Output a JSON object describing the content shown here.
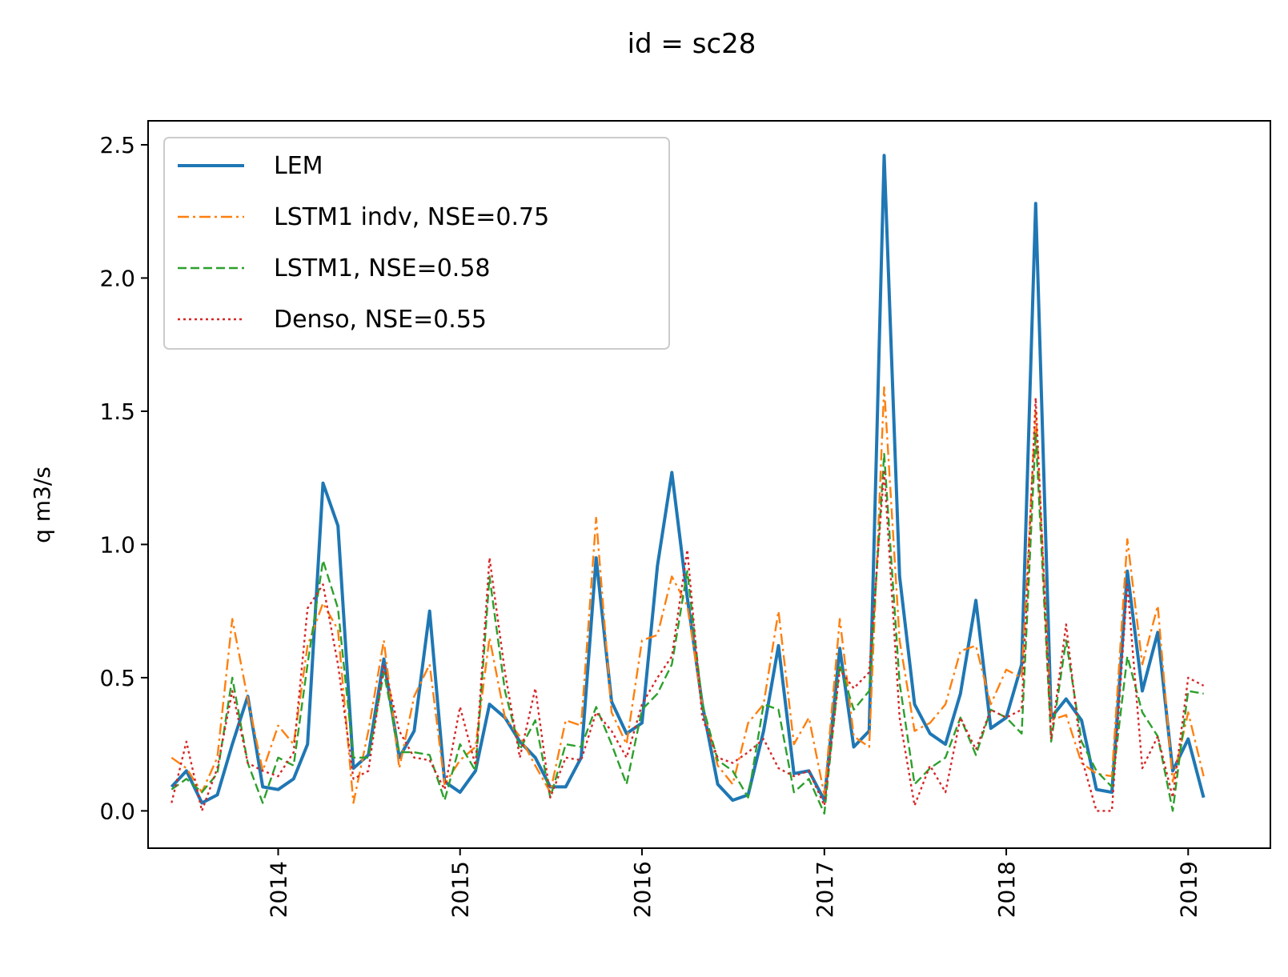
{
  "chart_data": {
    "type": "line",
    "title": "id = sc28",
    "xlabel": "",
    "ylabel": "q m3/s",
    "x_tick_labels": [
      "2014",
      "2015",
      "2016",
      "2017",
      "2018",
      "2019"
    ],
    "y_tick_labels": [
      "0.0",
      "0.5",
      "1.0",
      "1.5",
      "2.0",
      "2.5"
    ],
    "xlim": [
      "2013-04-15",
      "2019-06-15"
    ],
    "ylim": [
      -0.14,
      2.59
    ],
    "grid": false,
    "legend_position": "top-left",
    "x": [
      "2013-06-01",
      "2013-07-01",
      "2013-08-01",
      "2013-09-01",
      "2013-10-01",
      "2013-11-01",
      "2013-12-01",
      "2014-01-01",
      "2014-02-01",
      "2014-03-01",
      "2014-04-01",
      "2014-05-01",
      "2014-06-01",
      "2014-07-01",
      "2014-08-01",
      "2014-09-01",
      "2014-10-01",
      "2014-11-01",
      "2014-12-01",
      "2015-01-01",
      "2015-02-01",
      "2015-03-01",
      "2015-04-01",
      "2015-05-01",
      "2015-06-01",
      "2015-07-01",
      "2015-08-01",
      "2015-09-01",
      "2015-10-01",
      "2015-11-01",
      "2015-12-01",
      "2016-01-01",
      "2016-02-01",
      "2016-03-01",
      "2016-04-01",
      "2016-05-01",
      "2016-06-01",
      "2016-07-01",
      "2016-08-01",
      "2016-09-01",
      "2016-10-01",
      "2016-11-01",
      "2016-12-01",
      "2017-01-01",
      "2017-02-01",
      "2017-03-01",
      "2017-04-01",
      "2017-05-01",
      "2017-06-01",
      "2017-07-01",
      "2017-08-01",
      "2017-09-01",
      "2017-10-01",
      "2017-11-01",
      "2017-12-01",
      "2018-01-01",
      "2018-02-01",
      "2018-03-01",
      "2018-04-01",
      "2018-05-01",
      "2018-06-01",
      "2018-07-01",
      "2018-08-01",
      "2018-09-01",
      "2018-10-01",
      "2018-11-01",
      "2018-12-01",
      "2019-01-01",
      "2019-02-01"
    ],
    "series": [
      {
        "name": "LEM",
        "color": "#1f77b4",
        "style": "solid",
        "values": [
          0.09,
          0.15,
          0.03,
          0.06,
          0.25,
          0.43,
          0.09,
          0.08,
          0.12,
          0.25,
          1.23,
          1.07,
          0.16,
          0.21,
          0.57,
          0.2,
          0.3,
          0.75,
          0.11,
          0.07,
          0.15,
          0.4,
          0.35,
          0.26,
          0.2,
          0.09,
          0.09,
          0.2,
          0.95,
          0.41,
          0.29,
          0.33,
          0.92,
          1.27,
          0.8,
          0.4,
          0.1,
          0.04,
          0.06,
          0.3,
          0.62,
          0.14,
          0.15,
          0.04,
          0.61,
          0.24,
          0.3,
          2.46,
          0.88,
          0.4,
          0.29,
          0.25,
          0.44,
          0.79,
          0.31,
          0.35,
          0.55,
          2.28,
          0.35,
          0.42,
          0.34,
          0.08,
          0.07,
          0.9,
          0.45,
          0.67,
          0.15,
          0.27,
          0.05
        ]
      },
      {
        "name": "LSTM1 indv, NSE=0.75",
        "color": "#ff7f0e",
        "style": "dashdot",
        "values": [
          0.2,
          0.16,
          0.07,
          0.2,
          0.72,
          0.42,
          0.15,
          0.32,
          0.25,
          0.62,
          0.78,
          0.68,
          0.03,
          0.3,
          0.64,
          0.16,
          0.43,
          0.55,
          0.1,
          0.19,
          0.24,
          0.65,
          0.35,
          0.28,
          0.17,
          0.07,
          0.34,
          0.32,
          1.1,
          0.37,
          0.25,
          0.64,
          0.66,
          0.88,
          0.77,
          0.4,
          0.17,
          0.1,
          0.33,
          0.4,
          0.75,
          0.25,
          0.35,
          0.06,
          0.72,
          0.28,
          0.24,
          1.59,
          0.64,
          0.3,
          0.33,
          0.4,
          0.6,
          0.62,
          0.4,
          0.53,
          0.5,
          1.5,
          0.34,
          0.36,
          0.18,
          0.14,
          0.13,
          1.02,
          0.55,
          0.77,
          0.11,
          0.37,
          0.13
        ]
      },
      {
        "name": "LSTM1, NSE=0.58",
        "color": "#2ca02c",
        "style": "dashed",
        "values": [
          0.08,
          0.12,
          0.07,
          0.14,
          0.5,
          0.18,
          0.03,
          0.2,
          0.17,
          0.55,
          0.94,
          0.76,
          0.2,
          0.2,
          0.52,
          0.22,
          0.22,
          0.21,
          0.04,
          0.25,
          0.15,
          0.88,
          0.45,
          0.23,
          0.34,
          0.05,
          0.25,
          0.24,
          0.39,
          0.25,
          0.1,
          0.38,
          0.44,
          0.55,
          0.9,
          0.4,
          0.19,
          0.15,
          0.05,
          0.4,
          0.38,
          0.07,
          0.12,
          -0.01,
          0.55,
          0.38,
          0.45,
          1.34,
          0.48,
          0.1,
          0.16,
          0.2,
          0.35,
          0.21,
          0.38,
          0.35,
          0.29,
          1.42,
          0.26,
          0.64,
          0.26,
          0.15,
          0.09,
          0.58,
          0.37,
          0.28,
          0.0,
          0.45,
          0.44
        ]
      },
      {
        "name": "Denso, NSE=0.55",
        "color": "#d62728",
        "style": "dotted",
        "values": [
          0.03,
          0.26,
          0.0,
          0.16,
          0.45,
          0.18,
          0.15,
          0.13,
          0.22,
          0.76,
          0.85,
          0.55,
          0.12,
          0.15,
          0.55,
          0.3,
          0.2,
          0.19,
          0.08,
          0.39,
          0.17,
          0.95,
          0.52,
          0.2,
          0.46,
          0.05,
          0.2,
          0.19,
          0.37,
          0.3,
          0.2,
          0.4,
          0.5,
          0.58,
          0.98,
          0.35,
          0.2,
          0.18,
          0.22,
          0.27,
          0.16,
          0.13,
          0.15,
          0.02,
          0.53,
          0.46,
          0.52,
          1.28,
          0.35,
          0.02,
          0.17,
          0.07,
          0.35,
          0.23,
          0.38,
          0.35,
          0.38,
          1.55,
          0.27,
          0.7,
          0.2,
          0.0,
          0.0,
          0.85,
          0.16,
          0.28,
          0.05,
          0.5,
          0.47
        ]
      }
    ]
  }
}
